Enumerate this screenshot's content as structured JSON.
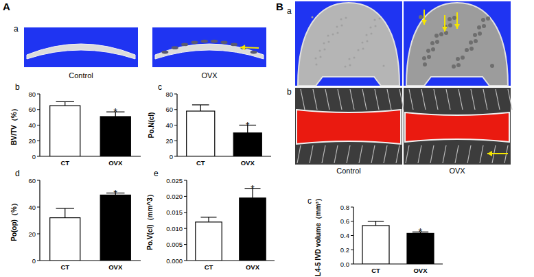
{
  "labels": {
    "A": "A",
    "B": "B",
    "A_a": "a",
    "B_a": "a",
    "B_b": "b",
    "A_captions": [
      "Control",
      "OVX"
    ],
    "B_captions": [
      "Control",
      "OVX"
    ]
  },
  "chart_data": [
    {
      "type": "bar",
      "title": "b",
      "ylabel": "BV/TV（%）",
      "categories": [
        "CT",
        "OVX"
      ],
      "values": [
        65,
        51
      ],
      "errors": [
        5,
        6
      ],
      "colors": [
        "#ffffff",
        "#000000"
      ],
      "ylim": [
        0,
        80
      ],
      "yticks": [
        0,
        20,
        40,
        60,
        80
      ],
      "annotations": [
        {
          "text": "*",
          "category": "OVX"
        }
      ]
    },
    {
      "type": "bar",
      "title": "c",
      "ylabel": "Po.N(cl)",
      "categories": [
        "CT",
        "OVX"
      ],
      "values": [
        58,
        30
      ],
      "errors": [
        8,
        10
      ],
      "colors": [
        "#ffffff",
        "#000000"
      ],
      "ylim": [
        0,
        80
      ],
      "yticks": [
        0,
        20,
        40,
        60,
        80
      ],
      "annotations": [
        {
          "text": "*",
          "category": "OVX"
        }
      ]
    },
    {
      "type": "bar",
      "title": "d",
      "ylabel": "Po(op)（%）",
      "categories": [
        "CT",
        "OVX"
      ],
      "values": [
        32,
        49
      ],
      "errors": [
        7,
        1.5
      ],
      "colors": [
        "#ffffff",
        "#000000"
      ],
      "ylim": [
        0,
        60
      ],
      "yticks": [
        0,
        20,
        40,
        60
      ],
      "annotations": [
        {
          "text": "*",
          "category": "OVX"
        }
      ]
    },
    {
      "type": "bar",
      "title": "e",
      "ylabel": "Po.V(cl)（mm^3）",
      "categories": [
        "CT",
        "OVX"
      ],
      "values": [
        0.012,
        0.0195
      ],
      "errors": [
        0.0015,
        0.003
      ],
      "colors": [
        "#ffffff",
        "#000000"
      ],
      "ylim": [
        0,
        0.025
      ],
      "yticks": [
        {
          "value": 0,
          "label": "0.000"
        },
        {
          "value": 0.005,
          "label": "0.005"
        },
        {
          "value": 0.01,
          "label": "0.010"
        },
        {
          "value": 0.015,
          "label": "0.015"
        },
        {
          "value": 0.02,
          "label": "0.020"
        },
        {
          "value": 0.025,
          "label": "0.025"
        }
      ],
      "annotations": [
        {
          "text": "*",
          "category": "OVX"
        }
      ]
    },
    {
      "type": "bar",
      "title": "c",
      "ylabel": "L4-5 IVD volume（mm³）",
      "categories": [
        "CT",
        "OVX"
      ],
      "values": [
        0.54,
        0.43
      ],
      "errors": [
        0.06,
        0.02
      ],
      "colors": [
        "#ffffff",
        "#000000"
      ],
      "ylim": [
        0,
        0.8
      ],
      "yticks": [
        {
          "value": 0,
          "label": "0.0"
        },
        0.2,
        0.4,
        0.6,
        0.8
      ],
      "annotations": [
        {
          "text": "*",
          "category": "OVX"
        }
      ]
    }
  ]
}
